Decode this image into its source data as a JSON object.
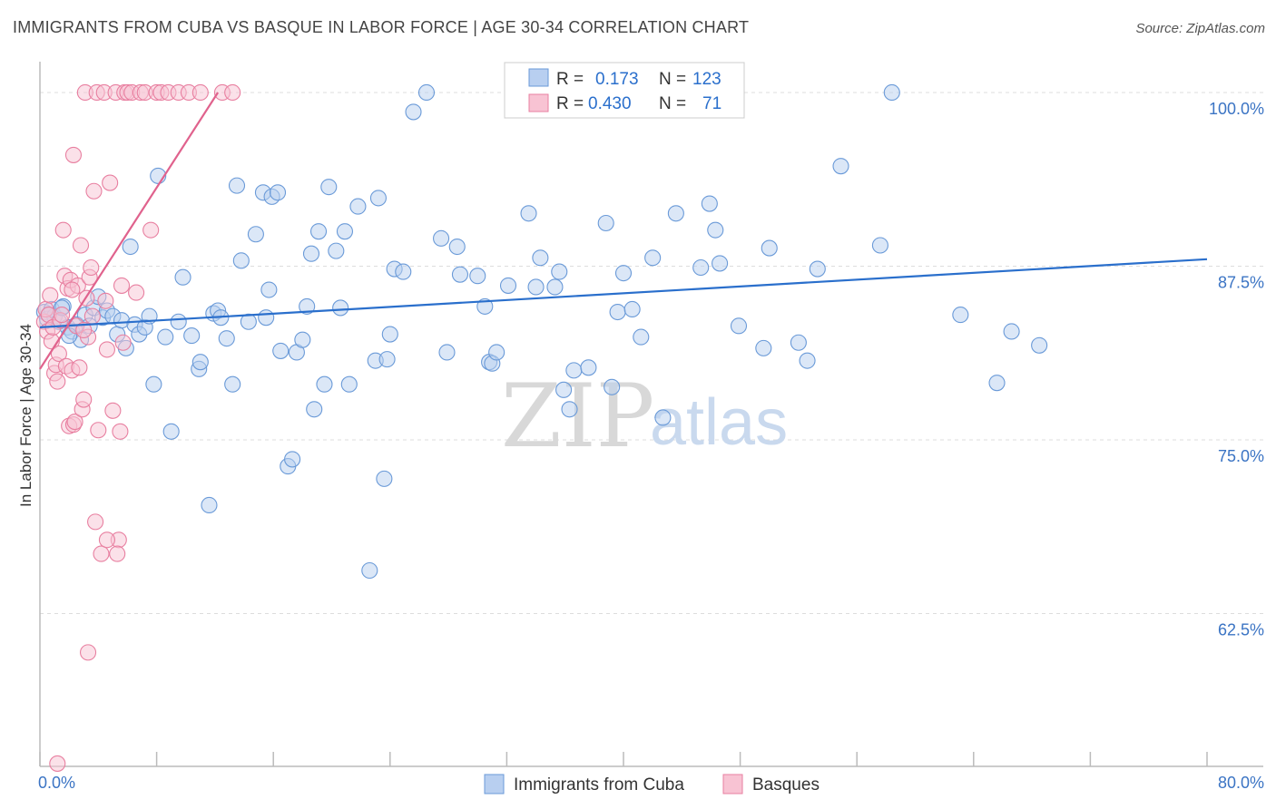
{
  "title": "IMMIGRANTS FROM CUBA VS BASQUE IN LABOR FORCE | AGE 30-34 CORRELATION CHART",
  "source": "Source: ZipAtlas.com",
  "watermark": {
    "zip": "ZIP",
    "atlas": "atlas"
  },
  "colors": {
    "blue_fill": "#b8cff0",
    "blue_stroke": "#6a9ad8",
    "blue_line": "#2a6fcc",
    "pink_fill": "#f8c3d3",
    "pink_stroke": "#e87fa0",
    "pink_line": "#e0628d",
    "tick_text": "#3b74c4",
    "grid": "#dddddd"
  },
  "legend": {
    "rows": [
      {
        "r_label": "R =",
        "r_value": "0.173",
        "n_label": "N =",
        "n_value": "123",
        "color": "blue"
      },
      {
        "r_label": "R =",
        "r_value": "0.430",
        "n_label": "N =",
        "n_value": "71",
        "color": "pink"
      }
    ]
  },
  "chart_data": {
    "type": "scatter",
    "title": "IMMIGRANTS FROM CUBA VS BASQUE IN LABOR FORCE | AGE 30-34 CORRELATION CHART",
    "xlabel": "",
    "ylabel": "In Labor Force | Age 30-34",
    "xlim": [
      0,
      80
    ],
    "ylim": [
      51.5,
      101.5
    ],
    "x_ticks": [
      0,
      8,
      16,
      24,
      32,
      40,
      48,
      56,
      64,
      72,
      80
    ],
    "x_tick_labels": [
      {
        "value": 0,
        "label": "0.0%"
      },
      {
        "value": 80,
        "label": "80.0%"
      }
    ],
    "y_ticks": [
      {
        "value": 100,
        "label": "100.0%"
      },
      {
        "value": 87.5,
        "label": "87.5%"
      },
      {
        "value": 75,
        "label": "75.0%"
      },
      {
        "value": 62.5,
        "label": "62.5%"
      }
    ],
    "grid": "horizontal dashed",
    "legend_position": "top-center",
    "series": [
      {
        "name": "Immigrants from Cuba",
        "color": "#b8cff0",
        "r": 0.173,
        "n": 123,
        "trend": {
          "x": [
            0,
            80
          ],
          "y": [
            83.1,
            88.0
          ]
        },
        "points": [
          [
            0.3,
            84.2
          ],
          [
            0.5,
            83.7
          ],
          [
            0.8,
            84.4
          ],
          [
            1.0,
            83.9
          ],
          [
            1.3,
            83.5
          ],
          [
            1.6,
            84.6
          ],
          [
            1.9,
            83.1
          ],
          [
            2.2,
            82.8
          ],
          [
            2.5,
            83.3
          ],
          [
            2.8,
            82.2
          ],
          [
            3.1,
            84.0
          ],
          [
            3.4,
            83.2
          ],
          [
            3.7,
            84.5
          ],
          [
            4.0,
            85.3
          ],
          [
            4.3,
            83.8
          ],
          [
            4.6,
            84.3
          ],
          [
            5.0,
            83.9
          ],
          [
            5.3,
            82.6
          ],
          [
            5.6,
            83.6
          ],
          [
            5.9,
            81.6
          ],
          [
            6.2,
            88.9
          ],
          [
            6.5,
            83.3
          ],
          [
            6.8,
            82.6
          ],
          [
            7.2,
            83.1
          ],
          [
            7.5,
            83.9
          ],
          [
            7.8,
            79.0
          ],
          [
            8.1,
            94.0
          ],
          [
            8.6,
            82.4
          ],
          [
            9.0,
            75.6
          ],
          [
            9.5,
            83.5
          ],
          [
            9.8,
            86.7
          ],
          [
            10.4,
            82.5
          ],
          [
            10.9,
            80.1
          ],
          [
            11.0,
            80.6
          ],
          [
            11.6,
            70.3
          ],
          [
            11.9,
            84.1
          ],
          [
            12.2,
            84.3
          ],
          [
            12.4,
            83.8
          ],
          [
            12.8,
            82.3
          ],
          [
            13.2,
            79.0
          ],
          [
            13.5,
            93.3
          ],
          [
            13.8,
            87.9
          ],
          [
            14.3,
            83.5
          ],
          [
            14.8,
            89.8
          ],
          [
            15.3,
            92.8
          ],
          [
            15.5,
            83.8
          ],
          [
            15.7,
            85.8
          ],
          [
            15.9,
            92.5
          ],
          [
            16.3,
            92.8
          ],
          [
            16.5,
            81.4
          ],
          [
            17.0,
            73.1
          ],
          [
            17.3,
            73.6
          ],
          [
            17.6,
            81.3
          ],
          [
            18.0,
            82.2
          ],
          [
            18.3,
            84.6
          ],
          [
            18.6,
            88.4
          ],
          [
            18.8,
            77.2
          ],
          [
            19.1,
            90.0
          ],
          [
            19.5,
            79.0
          ],
          [
            19.8,
            93.2
          ],
          [
            20.3,
            88.6
          ],
          [
            20.6,
            84.5
          ],
          [
            20.9,
            90.0
          ],
          [
            21.2,
            79.0
          ],
          [
            21.8,
            91.8
          ],
          [
            22.6,
            65.6
          ],
          [
            23.0,
            80.7
          ],
          [
            23.2,
            92.4
          ],
          [
            23.6,
            72.2
          ],
          [
            23.8,
            80.8
          ],
          [
            24.0,
            82.6
          ],
          [
            24.3,
            87.3
          ],
          [
            24.9,
            87.1
          ],
          [
            25.6,
            98.6
          ],
          [
            26.5,
            100.0
          ],
          [
            27.5,
            89.5
          ],
          [
            27.9,
            81.3
          ],
          [
            28.6,
            88.9
          ],
          [
            28.8,
            86.9
          ],
          [
            30.0,
            86.8
          ],
          [
            30.5,
            84.6
          ],
          [
            30.8,
            80.6
          ],
          [
            31.0,
            80.5
          ],
          [
            31.3,
            81.3
          ],
          [
            32.1,
            86.1
          ],
          [
            33.5,
            91.3
          ],
          [
            34.0,
            86.0
          ],
          [
            34.3,
            88.1
          ],
          [
            35.3,
            86.0
          ],
          [
            35.6,
            87.1
          ],
          [
            35.9,
            78.6
          ],
          [
            36.3,
            77.2
          ],
          [
            36.6,
            80.0
          ],
          [
            37.6,
            80.2
          ],
          [
            38.8,
            90.6
          ],
          [
            39.2,
            78.8
          ],
          [
            39.6,
            84.2
          ],
          [
            40.0,
            87.0
          ],
          [
            40.6,
            84.4
          ],
          [
            41.2,
            82.4
          ],
          [
            42.0,
            88.1
          ],
          [
            42.7,
            76.6
          ],
          [
            43.6,
            91.3
          ],
          [
            45.3,
            87.4
          ],
          [
            45.9,
            92.0
          ],
          [
            46.3,
            90.1
          ],
          [
            46.6,
            87.7
          ],
          [
            47.9,
            83.2
          ],
          [
            49.6,
            81.6
          ],
          [
            50.0,
            88.8
          ],
          [
            52.0,
            82.0
          ],
          [
            52.6,
            80.7
          ],
          [
            53.3,
            87.3
          ],
          [
            54.9,
            94.7
          ],
          [
            57.6,
            89.0
          ],
          [
            58.4,
            100.0
          ],
          [
            63.1,
            84.0
          ],
          [
            65.6,
            79.1
          ],
          [
            66.6,
            82.8
          ],
          [
            68.5,
            81.8
          ],
          [
            0.6,
            84.0
          ],
          [
            1.5,
            84.5
          ],
          [
            2.0,
            82.5
          ]
        ]
      },
      {
        "name": "Basques",
        "color": "#f8c3d3",
        "r": 0.43,
        "n": 71,
        "trend": {
          "x": [
            0,
            12.2
          ],
          "y": [
            80.1,
            100.0
          ]
        },
        "points": [
          [
            0.3,
            83.5
          ],
          [
            0.4,
            84.4
          ],
          [
            0.5,
            82.8
          ],
          [
            0.6,
            84.0
          ],
          [
            0.7,
            85.4
          ],
          [
            0.8,
            82.1
          ],
          [
            0.9,
            83.1
          ],
          [
            1.0,
            79.8
          ],
          [
            1.1,
            80.4
          ],
          [
            1.2,
            79.2
          ],
          [
            1.3,
            81.2
          ],
          [
            1.4,
            83.6
          ],
          [
            1.5,
            84.0
          ],
          [
            1.6,
            90.1
          ],
          [
            1.7,
            86.8
          ],
          [
            1.8,
            80.3
          ],
          [
            1.9,
            85.9
          ],
          [
            2.0,
            76.0
          ],
          [
            2.1,
            86.5
          ],
          [
            2.2,
            80.0
          ],
          [
            2.3,
            76.1
          ],
          [
            2.4,
            76.3
          ],
          [
            2.5,
            83.2
          ],
          [
            2.6,
            86.1
          ],
          [
            2.7,
            80.2
          ],
          [
            2.8,
            89.0
          ],
          [
            2.9,
            77.2
          ],
          [
            3.0,
            77.9
          ],
          [
            3.1,
            100.0
          ],
          [
            3.2,
            85.2
          ],
          [
            3.3,
            82.4
          ],
          [
            3.4,
            86.7
          ],
          [
            3.5,
            87.4
          ],
          [
            3.6,
            83.9
          ],
          [
            3.7,
            92.9
          ],
          [
            3.8,
            69.1
          ],
          [
            3.9,
            100.0
          ],
          [
            4.0,
            75.7
          ],
          [
            4.2,
            66.8
          ],
          [
            4.4,
            100.0
          ],
          [
            4.6,
            81.5
          ],
          [
            4.8,
            93.5
          ],
          [
            5.0,
            77.1
          ],
          [
            5.2,
            100.0
          ],
          [
            5.4,
            67.8
          ],
          [
            5.6,
            86.1
          ],
          [
            5.8,
            100.0
          ],
          [
            6.0,
            100.0
          ],
          [
            6.3,
            100.0
          ],
          [
            6.6,
            85.6
          ],
          [
            6.9,
            100.0
          ],
          [
            7.2,
            100.0
          ],
          [
            7.6,
            90.1
          ],
          [
            8.0,
            100.0
          ],
          [
            8.3,
            100.0
          ],
          [
            8.8,
            100.0
          ],
          [
            9.5,
            100.0
          ],
          [
            10.2,
            100.0
          ],
          [
            11.0,
            100.0
          ],
          [
            12.5,
            100.0
          ],
          [
            13.2,
            100.0
          ],
          [
            1.2,
            51.7
          ],
          [
            3.3,
            59.7
          ],
          [
            5.3,
            66.8
          ],
          [
            4.6,
            67.8
          ],
          [
            5.5,
            75.6
          ],
          [
            5.7,
            82.0
          ],
          [
            2.3,
            95.5
          ],
          [
            4.5,
            85.0
          ],
          [
            2.2,
            85.8
          ],
          [
            3.0,
            82.9
          ]
        ]
      }
    ]
  },
  "bottom_legend": {
    "items": [
      {
        "label": "Immigrants from Cuba",
        "color": "blue"
      },
      {
        "label": "Basques",
        "color": "pink"
      }
    ]
  }
}
